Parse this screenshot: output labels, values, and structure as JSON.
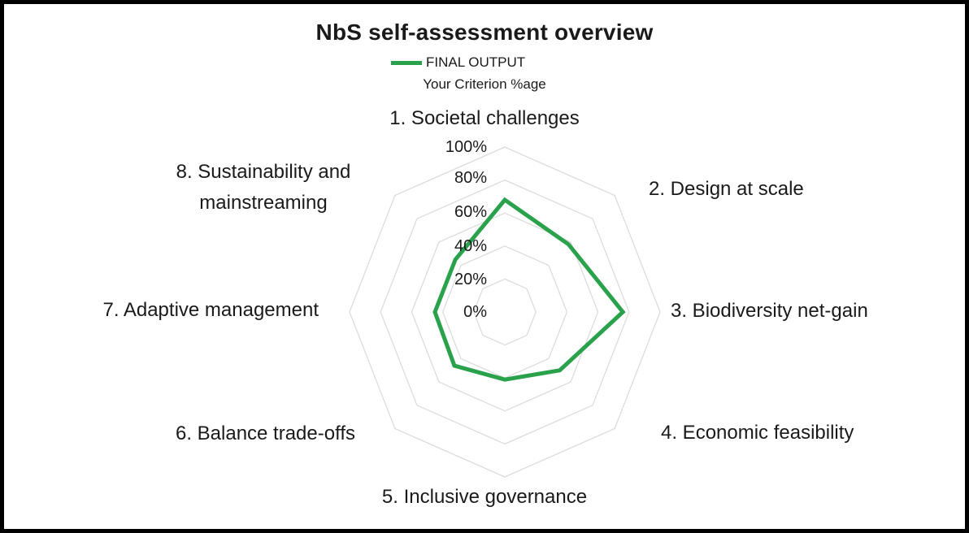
{
  "title": "NbS self-assessment overview",
  "legend": {
    "series_label": "FINAL OUTPUT",
    "sub_label": "Your Criterion %age"
  },
  "colors": {
    "series": "#2aa24c",
    "grid": "#dcdcdc",
    "text": "#1a1a1a",
    "border": "#000000"
  },
  "chart_data": {
    "type": "radar",
    "title": "NbS self-assessment overview",
    "legend_entries": [
      "FINAL OUTPUT"
    ],
    "legend_position": "top",
    "subtitle": "Your Criterion %age",
    "categories": [
      "1. Societal challenges",
      "2. Design at scale",
      "3. Biodiversity net-gain",
      "4. Economic feasibility",
      "5. Inclusive governance",
      "6. Balance trade-offs",
      "7. Adaptive management",
      "8. Sustainability and mainstreaming"
    ],
    "series": [
      {
        "name": "FINAL OUTPUT",
        "values": [
          68,
          58,
          76,
          50,
          41,
          46,
          45,
          45
        ]
      }
    ],
    "ticks": [
      "100%",
      "80%",
      "60%",
      "40%",
      "20%",
      "0%"
    ],
    "axis": {
      "min": 0,
      "max": 100,
      "step": 20,
      "unit": "%"
    },
    "grid": "concentric-octagon-rings",
    "radial_spokes": false
  }
}
